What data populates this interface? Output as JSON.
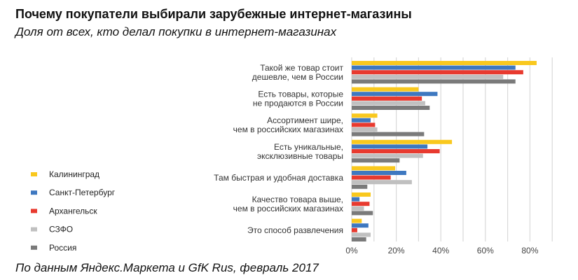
{
  "chart_data": {
    "type": "bar",
    "orientation": "horizontal",
    "title": "Почему покупатели выбирали зарубежные интернет-магазины",
    "subtitle": "Доля от всех, кто делал покупки в интернет-магазинах",
    "source": "По данным Яндекс.Маркета и GfK Rus, февраль 2017",
    "categories": [
      [
        "Такой же товар стоит",
        "дешевле, чем в России"
      ],
      [
        "Есть товары, которые",
        "не продаются в России"
      ],
      [
        "Ассортимент шире,",
        "чем в российских магазинах"
      ],
      [
        "Есть уникальные,",
        "эксклюзивные товары"
      ],
      [
        "Там быстрая и удобная доставка"
      ],
      [
        "Качество товара выше,",
        "чем в российских магазинах"
      ],
      [
        "Это способ развлечения"
      ]
    ],
    "series": [
      {
        "name": "Калининград",
        "color": "#f9c81e",
        "values": [
          83,
          30,
          11.5,
          45,
          19.5,
          8.5,
          4.5
        ]
      },
      {
        "name": "Санкт-Петербург",
        "color": "#3e78c0",
        "values": [
          73.5,
          38.5,
          8.5,
          34,
          24.5,
          3.5,
          7.5
        ]
      },
      {
        "name": "Архангельск",
        "color": "#e83a2f",
        "values": [
          77,
          31.5,
          10.5,
          39.5,
          17.5,
          8,
          2.5
        ]
      },
      {
        "name": "СЗФО",
        "color": "#c0c0c0",
        "values": [
          68,
          33,
          11.5,
          32,
          27,
          5.5,
          8.5
        ]
      },
      {
        "name": "Россия",
        "color": "#7a7a7a",
        "values": [
          73.5,
          35,
          32.5,
          21.5,
          7,
          9.5,
          6.5
        ]
      }
    ],
    "xticks": [
      "0%",
      "20%",
      "40%",
      "60%",
      "80%"
    ],
    "xlim": [
      0,
      90
    ],
    "grid": true,
    "legend_position": "left"
  }
}
